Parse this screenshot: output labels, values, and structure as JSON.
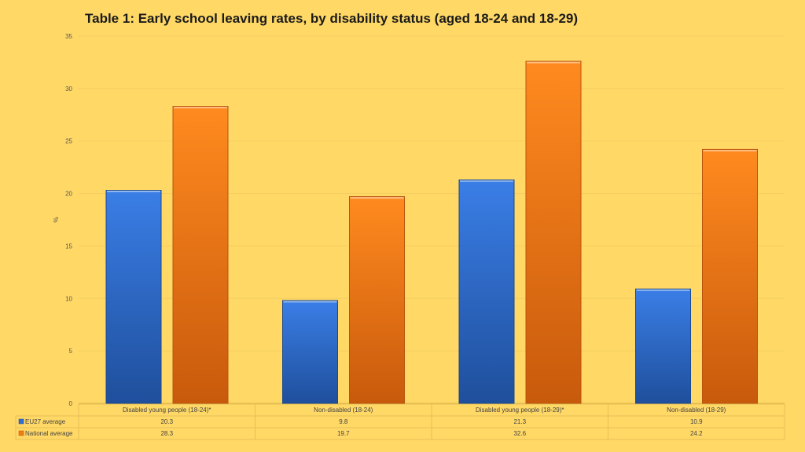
{
  "chart_data": {
    "type": "bar",
    "title": "Table 1: Early school leaving rates, by disability status (aged 18-24 and 18-29)",
    "ylabel": "%",
    "ylim": [
      0,
      35
    ],
    "yticks": [
      "0",
      "5",
      "10",
      "15",
      "20",
      "25",
      "30",
      "35"
    ],
    "categories": [
      "Disabled young people (18-24)*",
      "Non-disabled (18-24)",
      "Disabled young people (18-29)*",
      "Non-disabled (18-29)"
    ],
    "series": [
      {
        "name": "EU27 average",
        "values": [
          20.3,
          9.8,
          21.3,
          10.9
        ],
        "labels": [
          "20.3",
          "9.8",
          "21.3",
          "10.9"
        ],
        "color": "#2f6fd6"
      },
      {
        "name": "National average",
        "values": [
          28.3,
          19.7,
          32.6,
          24.2
        ],
        "labels": [
          "28.3",
          "19.7",
          "32.6",
          "24.2"
        ],
        "color": "#f07d15"
      }
    ],
    "grid": true,
    "legend": "data-table-left"
  }
}
